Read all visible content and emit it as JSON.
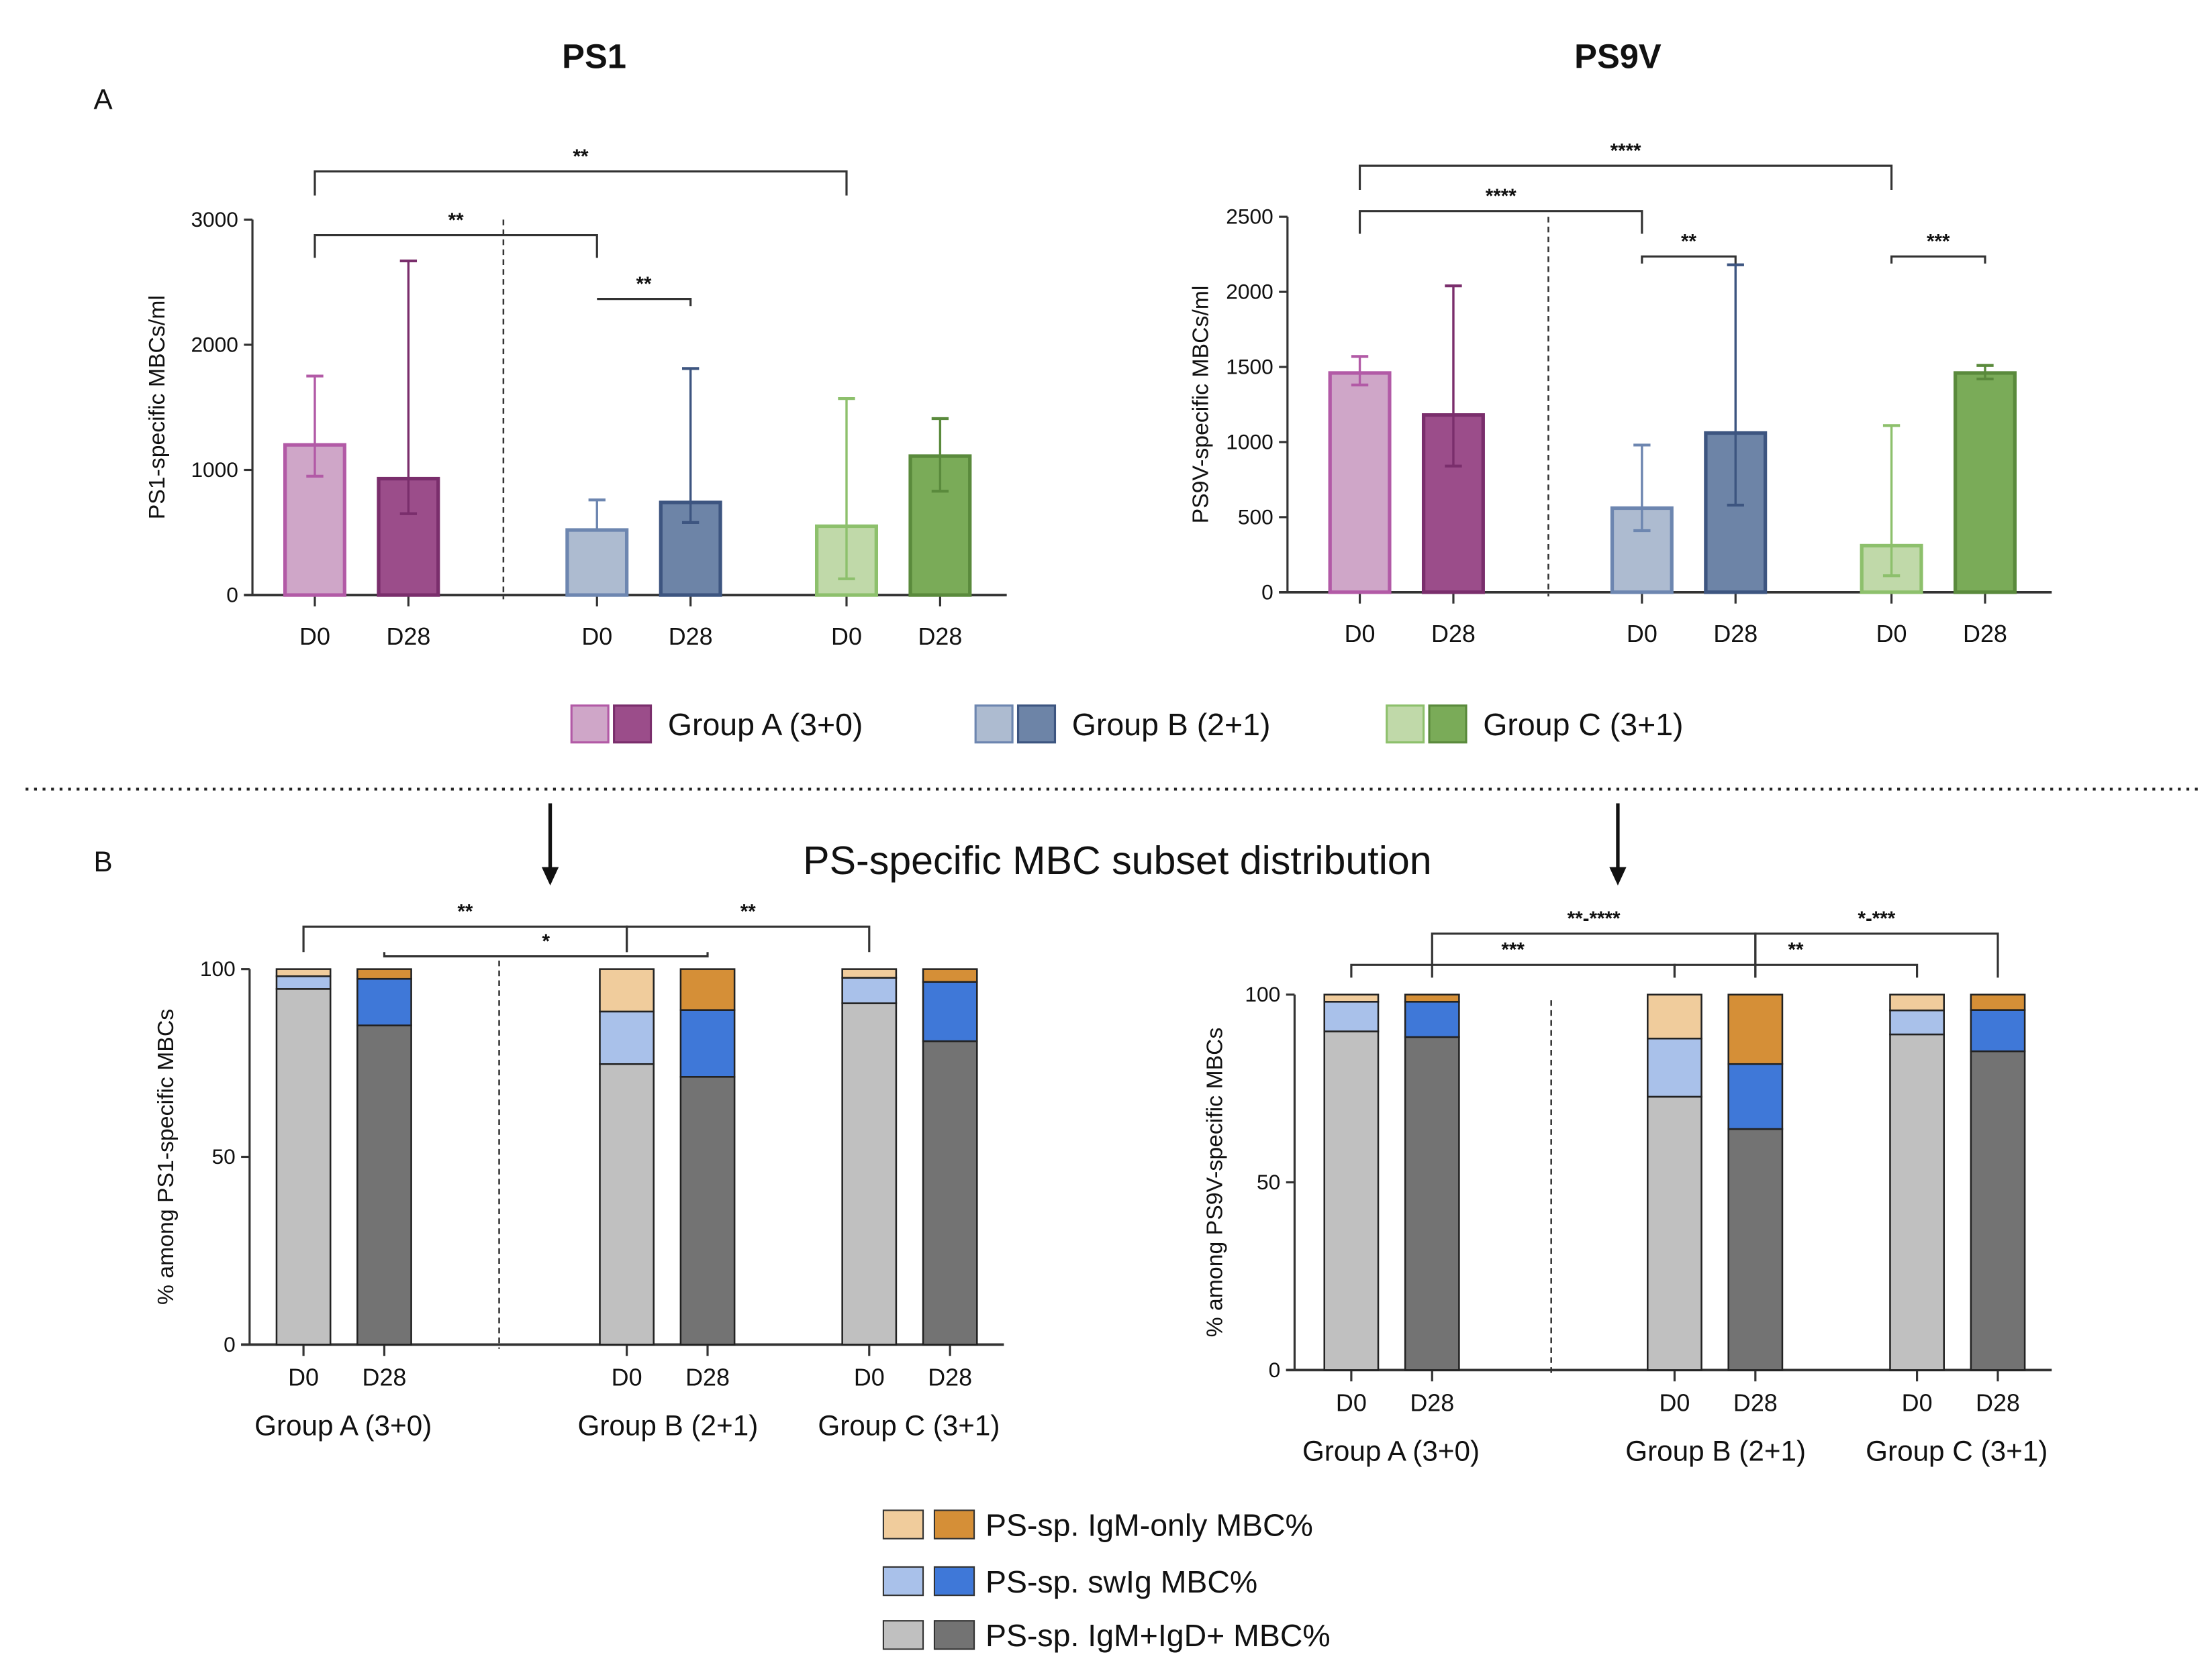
{
  "panel_labels": {
    "a": "A",
    "b": "B"
  },
  "colors": {
    "groups": {
      "A": {
        "light": "#cfa6c8",
        "light_border": "#b25aa6",
        "dark": "#9b4d8a",
        "dark_border": "#7a2e6c"
      },
      "B": {
        "light": "#adbbd0",
        "light_border": "#6d86b0",
        "dark": "#6d84a7",
        "dark_border": "#3d5580"
      },
      "C": {
        "light": "#c0d9a9",
        "light_border": "#8dc06c",
        "dark": "#7aab58",
        "dark_border": "#5a8a3c"
      }
    },
    "subsets": {
      "igm_only": {
        "light": "#f0cc9c",
        "dark": "#d58f37"
      },
      "swig": {
        "light": "#a9c1ea",
        "dark": "#3f78d8"
      },
      "igm_igd": {
        "light": "#c0c0c0",
        "dark": "#737373"
      }
    }
  },
  "legend_a": [
    "Group A (3+0)",
    "Group B (2+1)",
    "Group C (3+1)"
  ],
  "legend_b": [
    "PS-sp. IgM-only MBC%",
    "PS-sp. swIg MBC%",
    "PS-sp. IgM+IgD+ MBC%"
  ],
  "panel_b_title": "PS-specific MBC subset distribution",
  "chart_data": [
    {
      "type": "bar",
      "title": "PS1",
      "ylabel": "PS1-specific MBCs/ml",
      "ylim": [
        0,
        3000
      ],
      "yticks": [
        "0",
        "1000",
        "2000",
        "3000"
      ],
      "categories": [
        "D0",
        "D28",
        "D0",
        "D28",
        "D0",
        "D28"
      ],
      "groups": [
        "A",
        "A",
        "B",
        "B",
        "C",
        "C"
      ],
      "values": [
        1200,
        930,
        520,
        740,
        550,
        1110
      ],
      "error_low": [
        950,
        650,
        520,
        580,
        130,
        830
      ],
      "error_high": [
        1750,
        2670,
        760,
        1810,
        1570,
        1410
      ],
      "significance": [
        {
          "from": 0,
          "to": 4,
          "label": "**"
        },
        {
          "from": 0,
          "to": 2,
          "label": "**"
        },
        {
          "from": 2,
          "to": 3,
          "label": "**"
        }
      ]
    },
    {
      "type": "bar",
      "title": "PS9V",
      "ylabel": "PS9V-specific MBCs/ml",
      "ylim": [
        0,
        2500
      ],
      "yticks": [
        "0",
        "500",
        "1000",
        "1500",
        "2000",
        "2500"
      ],
      "categories": [
        "D0",
        "D28",
        "D0",
        "D28",
        "D0",
        "D28"
      ],
      "groups": [
        "A",
        "A",
        "B",
        "B",
        "C",
        "C"
      ],
      "values": [
        1460,
        1180,
        560,
        1060,
        310,
        1460
      ],
      "error_low": [
        1380,
        840,
        410,
        580,
        110,
        1420
      ],
      "error_high": [
        1570,
        2040,
        980,
        2180,
        1110,
        1510
      ],
      "significance": [
        {
          "from": 0,
          "to": 4,
          "label": "****"
        },
        {
          "from": 0,
          "to": 2,
          "label": "****"
        },
        {
          "from": 2,
          "to": 3,
          "label": "**"
        },
        {
          "from": 4,
          "to": 5,
          "label": "***"
        }
      ]
    },
    {
      "type": "bar",
      "stacked": true,
      "ylabel": "% among PS1-specific MBCs",
      "ylim": [
        0,
        100
      ],
      "yticks": [
        "0",
        "50",
        "100"
      ],
      "categories": [
        "D0",
        "D28",
        "D0",
        "D28",
        "D0",
        "D28"
      ],
      "group_labels": [
        "Group A (3+0)",
        "Group B (2+1)",
        "Group C (3+1)"
      ],
      "series": [
        {
          "name": "PS-sp. IgM+IgD+ MBC%",
          "values": [
            94.7,
            85.0,
            74.7,
            71.3,
            90.9,
            80.8
          ]
        },
        {
          "name": "PS-sp. swIg MBC%",
          "values": [
            3.4,
            12.4,
            14.0,
            17.8,
            6.8,
            15.8
          ]
        },
        {
          "name": "PS-sp. IgM-only MBC%",
          "values": [
            1.9,
            2.6,
            11.3,
            10.9,
            2.3,
            3.4
          ]
        }
      ],
      "significance": [
        {
          "from": 0,
          "to": 2,
          "label": "**",
          "level": 0
        },
        {
          "from": 1,
          "to": 3,
          "label": "*",
          "level": 1
        },
        {
          "from": 2,
          "to": 4,
          "label": "**",
          "level": 0
        }
      ]
    },
    {
      "type": "bar",
      "stacked": true,
      "ylabel": "% among PS9V-specific MBCs",
      "ylim": [
        0,
        100
      ],
      "yticks": [
        "0",
        "50",
        "100"
      ],
      "categories": [
        "D0",
        "D28",
        "D0",
        "D28",
        "D0",
        "D28"
      ],
      "group_labels": [
        "Group A (3+0)",
        "Group B (2+1)",
        "Group C (3+1)"
      ],
      "series": [
        {
          "name": "PS-sp. IgM+IgD+ MBC%",
          "values": [
            90.2,
            88.7,
            72.8,
            64.2,
            89.4,
            84.9
          ]
        },
        {
          "name": "PS-sp. swIg MBC%",
          "values": [
            7.9,
            9.4,
            15.5,
            17.3,
            6.4,
            11.0
          ]
        },
        {
          "name": "PS-sp. IgM-only MBC%",
          "values": [
            1.9,
            1.9,
            11.7,
            18.5,
            4.2,
            4.1
          ]
        }
      ],
      "significance": [
        {
          "from": 1,
          "to": 3,
          "label": "**-****",
          "level": 0
        },
        {
          "from": 3,
          "to": 5,
          "label": "*-***",
          "level": 0
        },
        {
          "from": 0,
          "to": 2,
          "label": "***",
          "level": 1
        },
        {
          "from": 2,
          "to": 4,
          "label": "**",
          "level": 1
        }
      ]
    }
  ]
}
